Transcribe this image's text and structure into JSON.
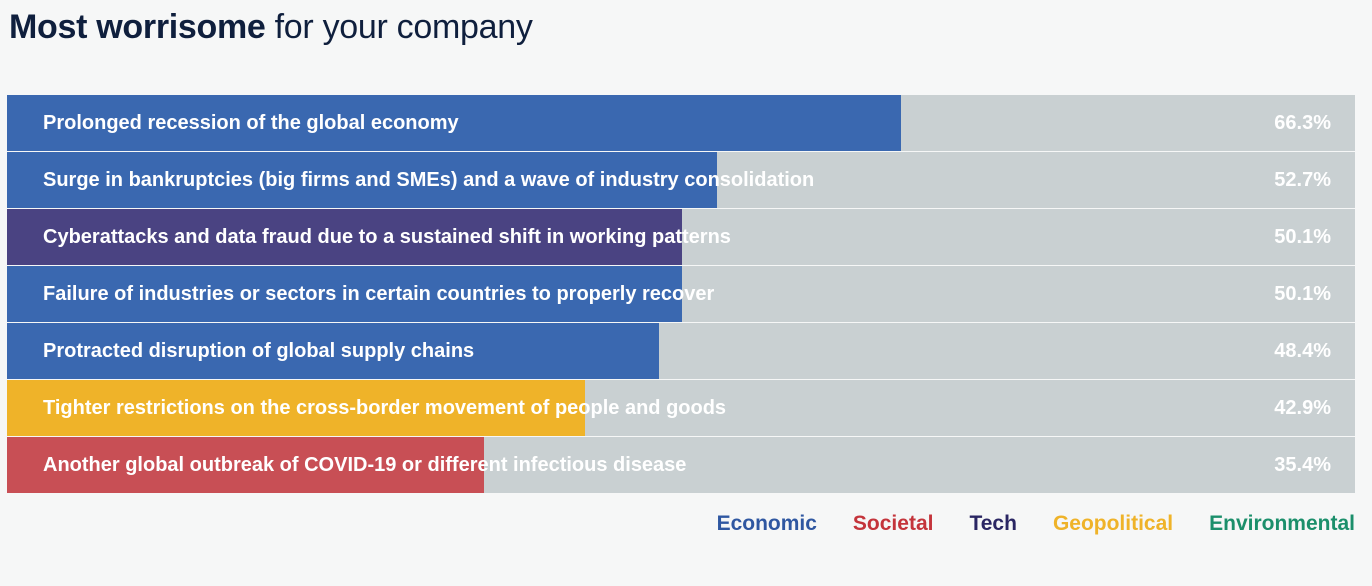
{
  "title": {
    "bold": "Most worrisome",
    "rest": " for your company"
  },
  "colors": {
    "Economic": "#3a68b0",
    "Societal": "#c84f55",
    "Tech": "#4a4382",
    "Geopolitical": "#efb329",
    "Environmental": "#1b8f6b",
    "track": "#c9d0d2"
  },
  "legend_colors": {
    "Economic": "#2f57a1",
    "Societal": "#c4343b",
    "Tech": "#2a2663",
    "Geopolitical": "#efb329",
    "Environmental": "#1b8f6b"
  },
  "legend": [
    "Economic",
    "Societal",
    "Tech",
    "Geopolitical",
    "Environmental"
  ],
  "chart_data": {
    "type": "bar",
    "orientation": "horizontal",
    "xlim": [
      0,
      100
    ],
    "categories": [
      "Prolonged recession of the global economy",
      "Surge in bankruptcies (big firms and SMEs) and a wave of industry consolidation",
      "Cyberattacks and data fraud due to a sustained shift in working patterns",
      "Failure of industries or sectors in certain countries to properly recover",
      "Protracted disruption of global supply chains",
      "Tighter restrictions on the cross-border movement of people and goods",
      "Another global outbreak of COVID-19 or different infectious disease"
    ],
    "values": [
      66.3,
      52.7,
      50.1,
      50.1,
      48.4,
      42.9,
      35.4
    ],
    "value_labels": [
      "66.3%",
      "52.7%",
      "50.1%",
      "50.1%",
      "48.4%",
      "42.9%",
      "35.4%"
    ],
    "groups": [
      "Economic",
      "Economic",
      "Tech",
      "Economic",
      "Economic",
      "Geopolitical",
      "Societal"
    ],
    "legend_position": "bottom-right"
  }
}
